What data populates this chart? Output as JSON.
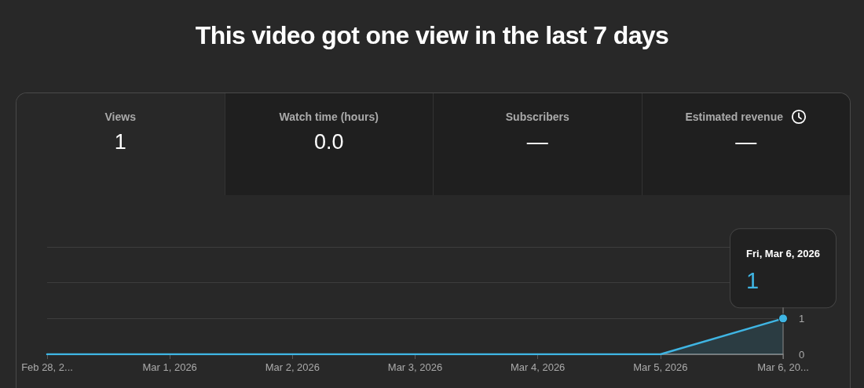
{
  "chart_data": [
    {
      "type": "other",
      "title": "This video got one view in the last 7 days",
      "categories": [
        "Views",
        "Watch time (hours)",
        "Subscribers",
        "Estimated revenue"
      ],
      "value_labels": [
        "1",
        "0.0",
        "—",
        "—"
      ]
    },
    {
      "type": "area",
      "categories": [
        "Feb 28, 2...",
        "Mar 1, 2026",
        "Mar 2, 2026",
        "Mar 3, 2026",
        "Mar 4, 2026",
        "Mar 5, 2026",
        "Mar 6, 20..."
      ],
      "values": [
        0,
        0,
        0,
        0,
        0,
        0,
        1
      ],
      "color": "#3fb5e3",
      "value_labels": [
        null,
        null,
        null,
        null,
        null,
        null,
        "1"
      ],
      "ylim": [
        0,
        3
      ],
      "yticks": [
        0,
        1,
        {
          "value": 2,
          "label": null
        },
        {
          "value": 3,
          "label": null
        }
      ],
      "grid": "y",
      "annotations": [
        "Fri, Mar 6, 2026"
      ]
    }
  ]
}
